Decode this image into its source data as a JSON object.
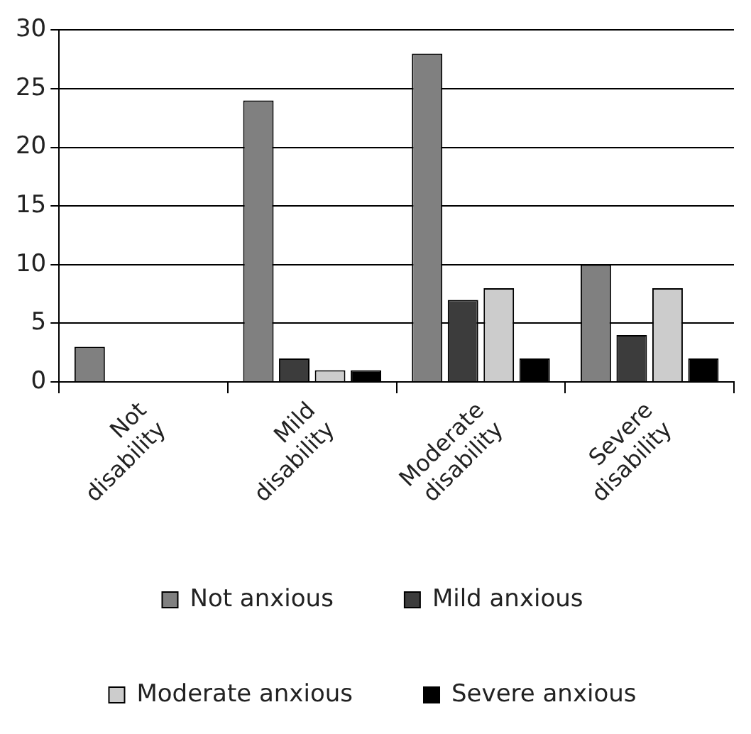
{
  "chart_data": {
    "type": "bar",
    "categories": [
      "Not disability",
      "Mild disability",
      "Moderate disability",
      "Severe disability"
    ],
    "series": [
      {
        "name": "Not anxious",
        "color": "#808080",
        "values": [
          3,
          24,
          28,
          10
        ]
      },
      {
        "name": "Mild anxious",
        "color": "#3c3c3c",
        "values": [
          0,
          2,
          7,
          4
        ]
      },
      {
        "name": "Moderate anxious",
        "color": "#cccccc",
        "values": [
          0,
          1,
          8,
          8
        ]
      },
      {
        "name": "Severe anxious",
        "color": "#000000",
        "values": [
          0,
          1,
          2,
          2
        ]
      }
    ],
    "ylim": [
      0,
      30
    ],
    "yticks": [
      0,
      5,
      10,
      15,
      20,
      25,
      30
    ],
    "grid": "y",
    "legend": "bottom"
  }
}
